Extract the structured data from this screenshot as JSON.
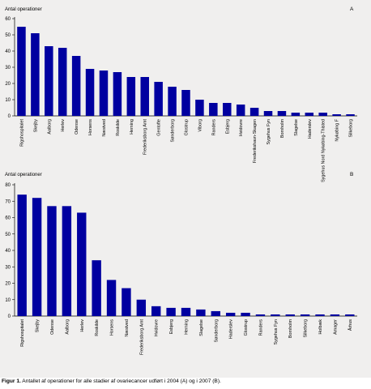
{
  "chart_data": [
    {
      "type": "bar",
      "panel": "A",
      "ylabel": "Antal operationer",
      "ylim": [
        0,
        60
      ],
      "yticks": [
        0,
        10,
        20,
        30,
        40,
        50,
        60
      ],
      "bar_color": "#0000a0",
      "categories": [
        "Rigshospitalet",
        "Skejby",
        "Aalborg",
        "Herlev",
        "Odense",
        "Horsens",
        "Næstved",
        "Roskilde",
        "Herning",
        "Frederiksborg Amt",
        "Gentofte",
        "Sønderborg",
        "Glostrup",
        "Viborg",
        "Randers",
        "Esbjerg",
        "Hvidovre",
        "Frederikshavn-Skagen",
        "Sygehus Fyn",
        "Bornholm",
        "Slagelse",
        "Haderslev",
        "Sygehus Nord Nykøbing-Thisted",
        "Nykøbing F",
        "Silkeborg"
      ],
      "values": [
        55,
        51,
        43,
        42,
        37,
        29,
        28,
        27,
        24,
        24,
        21,
        18,
        16,
        10,
        8,
        8,
        7,
        5,
        3,
        3,
        2,
        2,
        2,
        1,
        1
      ]
    },
    {
      "type": "bar",
      "panel": "B",
      "ylabel": "Antal operationer",
      "ylim": [
        0,
        80
      ],
      "yticks": [
        0,
        10,
        20,
        30,
        40,
        50,
        60,
        70,
        80
      ],
      "bar_color": "#0000a0",
      "categories": [
        "Rigshospitalet",
        "Skejby",
        "Odense",
        "Aalborg",
        "Herlev",
        "Roskilde",
        "Horsens",
        "Næstved",
        "Frederiksborg Amt",
        "Hvidovre",
        "Esbjerg",
        "Herning",
        "Slagelse",
        "Sønderborg",
        "Haderslev",
        "Glostrup",
        "Randers",
        "Sygehus Fyn",
        "Bornholm",
        "Silkeborg",
        "Holbæk",
        "Amager",
        "Århus"
      ],
      "values": [
        74,
        72,
        67,
        67,
        63,
        34,
        22,
        17,
        10,
        6,
        5,
        5,
        4,
        3,
        2,
        2,
        1,
        1,
        1,
        1,
        1,
        1,
        1
      ]
    }
  ],
  "caption": {
    "label": "Figur 1.",
    "text": "Antallet af operationer for alle stadier af ovariecancer udført i 2004 (A) og i 2007 (B)."
  }
}
